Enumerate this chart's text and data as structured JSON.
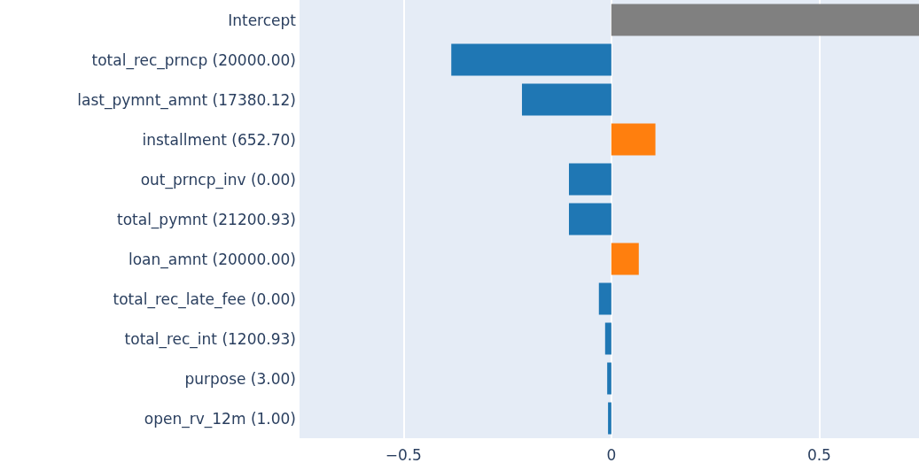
{
  "chart_data": {
    "type": "bar",
    "orientation": "horizontal",
    "categories": [
      "Intercept",
      "total_rec_prncp (20000.00)",
      "last_pymnt_amnt (17380.12)",
      "installment (652.70)",
      "out_prncp_inv (0.00)",
      "total_pymnt (21200.93)",
      "loan_amnt (20000.00)",
      "total_rec_late_fee (0.00)",
      "total_rec_int (1200.93)",
      "purpose (3.00)",
      "open_rv_12m (1.00)"
    ],
    "values": [
      0.74,
      -0.385,
      -0.215,
      0.106,
      -0.102,
      -0.102,
      0.066,
      -0.03,
      -0.015,
      -0.01,
      -0.008
    ],
    "colors": [
      "#808080",
      "#1f77b4",
      "#1f77b4",
      "#ff7f0e",
      "#1f77b4",
      "#1f77b4",
      "#ff7f0e",
      "#1f77b4",
      "#1f77b4",
      "#1f77b4",
      "#1f77b4"
    ],
    "xlim": [
      -0.75,
      0.74
    ],
    "xticks": [
      {
        "value": -0.5,
        "label": "−0.5"
      },
      0,
      0.5
    ],
    "grid": "x"
  }
}
